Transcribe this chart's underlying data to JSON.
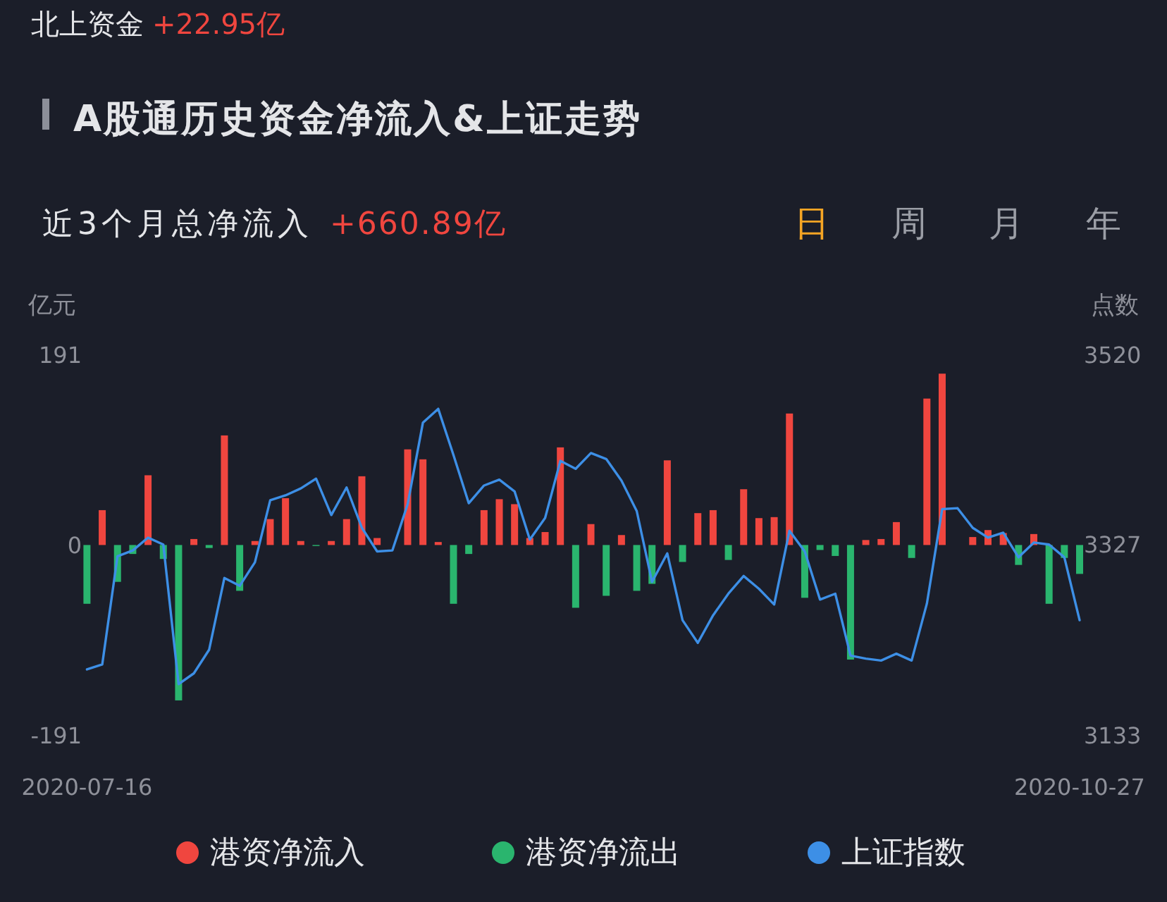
{
  "chart_data": {
    "type": "bar",
    "title": "A股通历史资金净流入&上证走势",
    "subtitle": "近3个月总净流入 +660.89亿",
    "ylabel": "亿元",
    "y2label": "点数",
    "annotations": [
      "北上资金 +22.95亿",
      "日",
      "周",
      "月",
      "年"
    ],
    "categories": [
      "2020-07-16",
      null,
      null,
      null,
      null,
      null,
      null,
      null,
      null,
      null,
      null,
      null,
      null,
      null,
      null,
      null,
      null,
      null,
      null,
      null,
      null,
      null,
      null,
      null,
      null,
      null,
      null,
      null,
      null,
      null,
      null,
      null,
      null,
      null,
      null,
      null,
      null,
      null,
      null,
      null,
      null,
      null,
      null,
      null,
      null,
      null,
      null,
      null,
      null,
      null,
      null,
      null,
      null,
      null,
      null,
      null,
      null,
      null,
      null,
      null,
      null,
      null,
      null,
      null,
      null,
      "2020-10-27"
    ],
    "series": [
      {
        "name": "港资净流入",
        "color": "#f0463f",
        "values": [
          null,
          35,
          null,
          null,
          70,
          null,
          null,
          6,
          null,
          110,
          null,
          4,
          26,
          47,
          4,
          null,
          4,
          26,
          69,
          7,
          null,
          96,
          86,
          3,
          null,
          null,
          35,
          46,
          41,
          7,
          13,
          98,
          null,
          21,
          null,
          10,
          null,
          null,
          85,
          null,
          32,
          35,
          null,
          56,
          27,
          28,
          132,
          null,
          null,
          null,
          null,
          5,
          6,
          23,
          null,
          147,
          172,
          null,
          8,
          15,
          12,
          null,
          11,
          null,
          null,
          null
        ]
      },
      {
        "name": "港资净流出",
        "color": "#2ab56e",
        "values": [
          -59,
          null,
          -37,
          -9,
          null,
          -14,
          -156,
          null,
          -3,
          null,
          -46,
          null,
          null,
          null,
          null,
          -1,
          null,
          null,
          null,
          null,
          null,
          null,
          null,
          null,
          -59,
          -9,
          null,
          null,
          null,
          null,
          null,
          null,
          -63,
          null,
          -51,
          null,
          -46,
          -39,
          null,
          -17,
          null,
          null,
          -15,
          null,
          null,
          null,
          null,
          -53,
          -5,
          -11,
          -115,
          null,
          null,
          null,
          -13,
          null,
          null,
          null,
          null,
          null,
          null,
          -20,
          null,
          -59,
          -13,
          -29
        ]
      },
      {
        "name": "上证指数",
        "type": "line",
        "axis": "y2",
        "color": "#3d8fe6",
        "values": [
          3200,
          3205,
          3315,
          3321,
          3334,
          3327,
          3185,
          3196,
          3220,
          3293,
          3285,
          3309,
          3372,
          3377,
          3384,
          3394,
          3357,
          3385,
          3344,
          3320,
          3321,
          3368,
          3451,
          3465,
          3418,
          3369,
          3387,
          3393,
          3381,
          3332,
          3354,
          3412,
          3404,
          3420,
          3414,
          3392,
          3361,
          3289,
          3318,
          3250,
          3227,
          3255,
          3277,
          3295,
          3282,
          3266,
          3341,
          3320,
          3271,
          3277,
          3214,
          3211,
          3209,
          3216,
          3209,
          3267,
          3363,
          3364,
          3344,
          3334,
          3339,
          3314,
          3329,
          3327,
          3314,
          3250
        ]
      }
    ],
    "stacked": true,
    "ylim": [
      -191,
      191
    ],
    "yticks": [
      -191,
      0,
      191
    ],
    "y2lim": [
      3133,
      3520
    ],
    "y2ticks": [
      3133,
      3327,
      3520
    ],
    "legend": "bottom"
  }
}
